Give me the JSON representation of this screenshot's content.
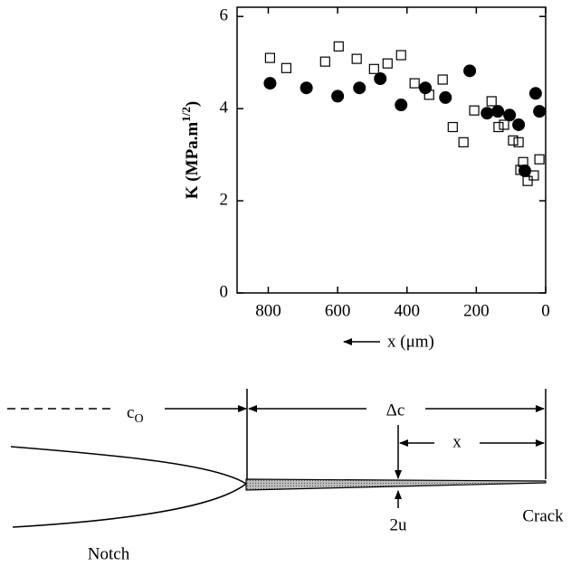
{
  "chart_data": {
    "type": "scatter",
    "ylabel": "K (MPa.m",
    "ylabel_sup": "1/2",
    "ylabel_end": ")",
    "xlabel": "x (μm)",
    "xlim": [
      890,
      0
    ],
    "xticks": [
      800,
      600,
      400,
      200,
      0
    ],
    "ylim": [
      0,
      6.2
    ],
    "yticks": [
      0,
      2,
      4,
      6
    ],
    "series": [
      {
        "marker": "circle",
        "color": "#000000",
        "facecolor": "#000000",
        "x": [
          795,
          690,
          600,
          537,
          477,
          417,
          347,
          289,
          219,
          169,
          138,
          104,
          78,
          60,
          29,
          18
        ],
        "values": [
          4.55,
          4.45,
          4.27,
          4.45,
          4.65,
          4.08,
          4.45,
          4.24,
          4.82,
          3.9,
          3.94,
          3.86,
          3.65,
          2.65,
          4.33,
          3.94
        ]
      },
      {
        "marker": "square",
        "color": "#000000",
        "facecolor": "none",
        "x": [
          795,
          748,
          636,
          597,
          545,
          495,
          456,
          417,
          378,
          336,
          297,
          268,
          237,
          206,
          156,
          136,
          120,
          94,
          78,
          73,
          65,
          52,
          34,
          18
        ],
        "values": [
          5.1,
          4.88,
          5.02,
          5.35,
          5.08,
          4.86,
          4.98,
          5.16,
          4.55,
          4.3,
          4.63,
          3.6,
          3.27,
          3.96,
          4.16,
          3.6,
          3.65,
          3.31,
          3.27,
          2.67,
          2.84,
          2.43,
          2.55,
          2.9
        ]
      }
    ]
  },
  "diagram": {
    "c_main": "c",
    "c_sub": "O",
    "delta_c": "Δc",
    "x": "x",
    "two_u": "2u",
    "crack": "Crack",
    "notch": "Notch"
  }
}
